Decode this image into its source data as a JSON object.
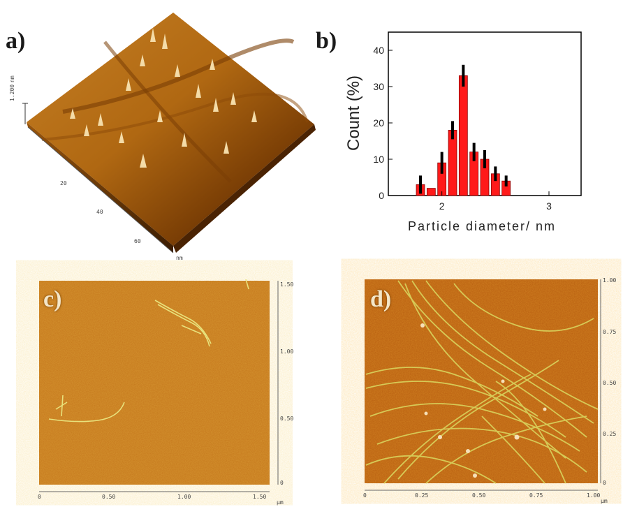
{
  "panels": {
    "a": {
      "label": "a)",
      "z_scale_label": "1.200",
      "z_unit": "nm",
      "axis_ticks": [
        "20",
        "40",
        "60"
      ],
      "axis_unit": "nm"
    },
    "b": {
      "label": "b)"
    },
    "c": {
      "label": "c)",
      "x_ticks": [
        "0",
        "0.50",
        "1.00",
        "1.50"
      ],
      "y_ticks": [
        "0",
        "0.50",
        "1.00",
        "1.50"
      ],
      "x_unit": "μm"
    },
    "d": {
      "label": "d)",
      "x_ticks": [
        "0",
        "0.25",
        "0.50",
        "0.75",
        "1.00"
      ],
      "y_ticks": [
        "0",
        "0.25",
        "0.50",
        "0.75",
        "1.00"
      ],
      "x_unit": "μm"
    }
  },
  "colors": {
    "afm_dark": "#3a1c02",
    "afm_mid": "#a5620f",
    "afm_light": "#f0d9a0",
    "afm_flat": "#c07414",
    "fibril": "#e7e07a",
    "bar_fill": "#ff1a1a",
    "error_bar": "#000000"
  },
  "chart_data": {
    "type": "bar",
    "xlabel": "Particle diameter/ nm",
    "ylabel": "Count (%)",
    "x": [
      1.8,
      1.9,
      2.0,
      2.1,
      2.2,
      2.3,
      2.4,
      2.5,
      2.6,
      2.7
    ],
    "values": [
      3,
      2,
      9,
      18,
      33,
      12,
      10,
      6,
      4,
      0
    ],
    "errors": [
      2.5,
      0,
      3,
      2.5,
      3,
      2.5,
      2.5,
      2,
      1.5,
      0
    ],
    "xlim": [
      1.5,
      3.3
    ],
    "ylim": [
      0,
      45
    ],
    "x_ticks": [
      "2",
      "3"
    ],
    "x_tick_values": [
      2,
      3
    ],
    "y_ticks": [
      "0",
      "10",
      "20",
      "30",
      "40"
    ],
    "y_tick_values": [
      0,
      10,
      20,
      30,
      40
    ]
  }
}
